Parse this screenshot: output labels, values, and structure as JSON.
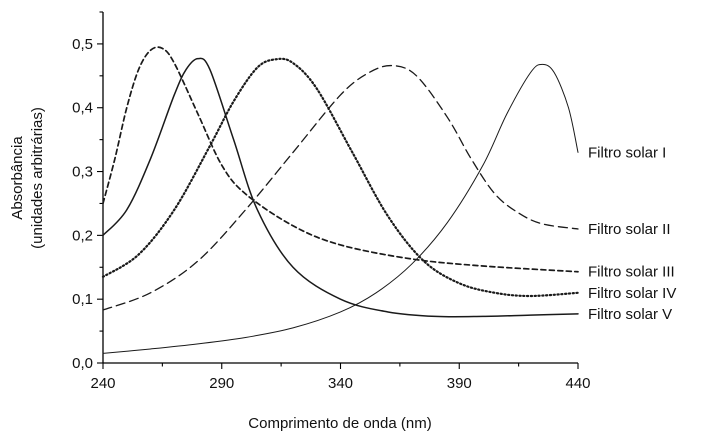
{
  "chart_data": {
    "type": "line",
    "xlabel": "Comprimento de onda (nm)",
    "ylabel_line1": "Absorbância",
    "ylabel_line2": "(unidades arbitrárias)",
    "xlim": [
      240,
      440
    ],
    "ylim": [
      0.0,
      0.55
    ],
    "x_ticks": [
      240,
      290,
      340,
      390,
      440
    ],
    "x_tick_labels": [
      "240",
      "290",
      "340",
      "390",
      "440"
    ],
    "y_ticks": [
      0.0,
      0.1,
      0.2,
      0.3,
      0.4,
      0.5
    ],
    "y_tick_labels": [
      "0,0",
      "0,1",
      "0,2",
      "0,3",
      "0,4",
      "0,5"
    ],
    "grid": false,
    "legend": "inline labels at right end of each curve",
    "series": [
      {
        "name": "Filtro solar I",
        "style": "solid-thin",
        "points": [
          [
            240,
            0.015
          ],
          [
            260,
            0.022
          ],
          [
            280,
            0.03
          ],
          [
            300,
            0.04
          ],
          [
            320,
            0.055
          ],
          [
            340,
            0.08
          ],
          [
            355,
            0.11
          ],
          [
            370,
            0.155
          ],
          [
            385,
            0.22
          ],
          [
            400,
            0.31
          ],
          [
            410,
            0.39
          ],
          [
            420,
            0.455
          ],
          [
            425,
            0.468
          ],
          [
            430,
            0.455
          ],
          [
            436,
            0.4
          ],
          [
            440,
            0.33
          ]
        ]
      },
      {
        "name": "Filtro solar II",
        "style": "long-dash",
        "points": [
          [
            240,
            0.083
          ],
          [
            260,
            0.11
          ],
          [
            280,
            0.16
          ],
          [
            300,
            0.24
          ],
          [
            320,
            0.33
          ],
          [
            340,
            0.42
          ],
          [
            352,
            0.455
          ],
          [
            362,
            0.466
          ],
          [
            372,
            0.45
          ],
          [
            385,
            0.385
          ],
          [
            395,
            0.32
          ],
          [
            405,
            0.265
          ],
          [
            415,
            0.235
          ],
          [
            425,
            0.218
          ],
          [
            440,
            0.21
          ]
        ]
      },
      {
        "name": "Filtro solar III",
        "style": "short-dash",
        "points": [
          [
            240,
            0.25
          ],
          [
            245,
            0.32
          ],
          [
            250,
            0.4
          ],
          [
            255,
            0.46
          ],
          [
            260,
            0.49
          ],
          [
            265,
            0.493
          ],
          [
            270,
            0.47
          ],
          [
            280,
            0.39
          ],
          [
            290,
            0.31
          ],
          [
            300,
            0.265
          ],
          [
            320,
            0.215
          ],
          [
            340,
            0.185
          ],
          [
            370,
            0.163
          ],
          [
            400,
            0.152
          ],
          [
            440,
            0.143
          ]
        ]
      },
      {
        "name": "Filtro solar IV",
        "style": "dotted",
        "points": [
          [
            240,
            0.135
          ],
          [
            255,
            0.17
          ],
          [
            270,
            0.24
          ],
          [
            285,
            0.34
          ],
          [
            295,
            0.41
          ],
          [
            305,
            0.463
          ],
          [
            313,
            0.476
          ],
          [
            320,
            0.47
          ],
          [
            330,
            0.43
          ],
          [
            345,
            0.33
          ],
          [
            360,
            0.23
          ],
          [
            375,
            0.16
          ],
          [
            390,
            0.125
          ],
          [
            405,
            0.11
          ],
          [
            420,
            0.105
          ],
          [
            440,
            0.11
          ]
        ]
      },
      {
        "name": "Filtro solar V",
        "style": "solid",
        "points": [
          [
            240,
            0.2
          ],
          [
            250,
            0.24
          ],
          [
            260,
            0.32
          ],
          [
            270,
            0.42
          ],
          [
            275,
            0.46
          ],
          [
            280,
            0.477
          ],
          [
            285,
            0.46
          ],
          [
            295,
            0.35
          ],
          [
            305,
            0.24
          ],
          [
            320,
            0.15
          ],
          [
            340,
            0.1
          ],
          [
            360,
            0.08
          ],
          [
            380,
            0.073
          ],
          [
            400,
            0.073
          ],
          [
            420,
            0.075
          ],
          [
            440,
            0.077
          ]
        ]
      }
    ],
    "labels": [
      {
        "series": "Filtro solar I",
        "text": "Filtro solar I",
        "anchor_x": 440,
        "anchor_y": 0.33
      },
      {
        "series": "Filtro solar II",
        "text": "Filtro solar II",
        "anchor_x": 440,
        "anchor_y": 0.21
      },
      {
        "series": "Filtro solar III",
        "text": "Filtro solar III",
        "anchor_x": 440,
        "anchor_y": 0.143
      },
      {
        "series": "Filtro solar IV",
        "text": "Filtro solar IV",
        "anchor_x": 440,
        "anchor_y": 0.11
      },
      {
        "series": "Filtro solar V",
        "text": "Filtro solar V",
        "anchor_x": 440,
        "anchor_y": 0.077
      }
    ]
  }
}
